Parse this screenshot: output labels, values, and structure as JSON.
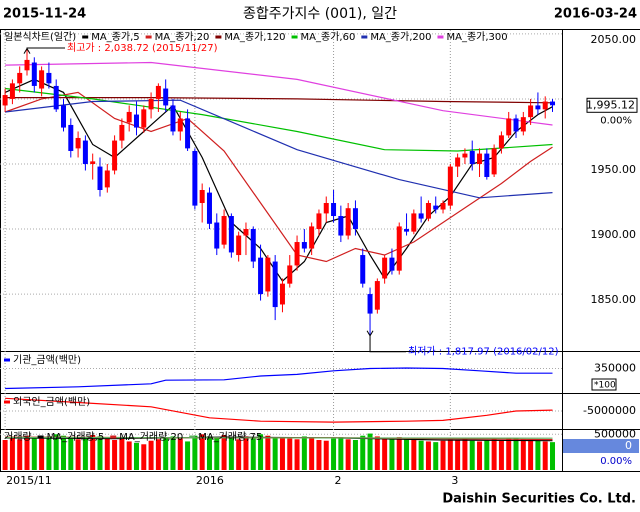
{
  "header": {
    "start_date": "2015-11-24",
    "title": "종합주가지수 (001), 일간",
    "end_date": "2016-03-24"
  },
  "footer": "Daishin Securities Co. Ltd.",
  "chart_data": [
    {
      "type": "candlestick",
      "legend_title": "일본식차트(일간)",
      "up_color": "#ff0000",
      "down_color": "#0000ff",
      "xlim": [
        -0.7,
        76.3
      ],
      "ylim": [
        1807,
        2053
      ],
      "yticks": [
        {
          "value": 1850,
          "label": "1850.00"
        },
        {
          "value": 1900,
          "label": "1900.00"
        },
        {
          "value": 1950,
          "label": "1950.00"
        },
        {
          "value": 2000,
          "label": "2000.00"
        },
        {
          "value": 2050,
          "label": "2050.00"
        }
      ],
      "candles": [
        [
          1995,
          2008,
          1990,
          2003
        ],
        [
          2000,
          2015,
          1996,
          2012
        ],
        [
          2012,
          2025,
          2005,
          2020
        ],
        [
          2022,
          2038.72,
          2018,
          2030
        ],
        [
          2028,
          2032,
          2005,
          2010
        ],
        [
          2008,
          2025,
          2002,
          2022
        ],
        [
          2020,
          2028,
          2008,
          2012
        ],
        [
          2010,
          2015,
          1990,
          1992
        ],
        [
          1995,
          2000,
          1975,
          1978
        ],
        [
          1980,
          1985,
          1955,
          1960
        ],
        [
          1962,
          1975,
          1955,
          1970
        ],
        [
          1968,
          1972,
          1945,
          1950
        ],
        [
          1950,
          1958,
          1938,
          1952
        ],
        [
          1948,
          1955,
          1925,
          1930
        ],
        [
          1932,
          1950,
          1928,
          1945
        ],
        [
          1945,
          1972,
          1942,
          1968
        ],
        [
          1968,
          1985,
          1962,
          1980
        ],
        [
          1982,
          1995,
          1975,
          1990
        ],
        [
          1988,
          1998,
          1972,
          1978
        ],
        [
          1978,
          1995,
          1974,
          1992
        ],
        [
          1992,
          2005,
          1985,
          2000
        ],
        [
          2000,
          2012,
          1990,
          2010
        ],
        [
          2008,
          2015,
          1990,
          1995
        ],
        [
          1995,
          2000,
          1972,
          1975
        ],
        [
          1975,
          1990,
          1968,
          1985
        ],
        [
          1985,
          1992,
          1960,
          1962
        ],
        [
          1960,
          1962,
          1915,
          1918
        ],
        [
          1920,
          1935,
          1905,
          1930
        ],
        [
          1928,
          1932,
          1900,
          1904
        ],
        [
          1905,
          1912,
          1880,
          1885
        ],
        [
          1888,
          1915,
          1885,
          1910
        ],
        [
          1910,
          1912,
          1878,
          1882
        ],
        [
          1880,
          1898,
          1875,
          1895
        ],
        [
          1895,
          1905,
          1880,
          1900
        ],
        [
          1900,
          1902,
          1870,
          1875
        ],
        [
          1878,
          1888,
          1845,
          1850
        ],
        [
          1852,
          1880,
          1848,
          1878
        ],
        [
          1875,
          1880,
          1830,
          1840
        ],
        [
          1842,
          1862,
          1836,
          1858
        ],
        [
          1858,
          1880,
          1855,
          1872
        ],
        [
          1872,
          1895,
          1868,
          1890
        ],
        [
          1890,
          1900,
          1882,
          1885
        ],
        [
          1885,
          1905,
          1880,
          1902
        ],
        [
          1900,
          1915,
          1895,
          1912
        ],
        [
          1912,
          1925,
          1905,
          1920
        ],
        [
          1920,
          1930,
          1905,
          1910
        ],
        [
          1910,
          1918,
          1890,
          1895
        ],
        [
          1895,
          1920,
          1892,
          1916
        ],
        [
          1916,
          1922,
          1895,
          1900
        ],
        [
          1880,
          1885,
          1855,
          1858
        ],
        [
          1850,
          1855,
          1817.97,
          1835
        ],
        [
          1838,
          1862,
          1835,
          1860
        ],
        [
          1862,
          1880,
          1858,
          1878
        ],
        [
          1878,
          1885,
          1865,
          1868
        ],
        [
          1868,
          1905,
          1865,
          1902
        ],
        [
          1900,
          1912,
          1895,
          1898
        ],
        [
          1898,
          1915,
          1896,
          1912
        ],
        [
          1912,
          1925,
          1905,
          1908
        ],
        [
          1908,
          1922,
          1906,
          1920
        ],
        [
          1918,
          1925,
          1912,
          1915
        ],
        [
          1915,
          1922,
          1912,
          1920
        ],
        [
          1918,
          1950,
          1915,
          1948
        ],
        [
          1948,
          1958,
          1940,
          1955
        ],
        [
          1955,
          1962,
          1950,
          1958
        ],
        [
          1960,
          1968,
          1945,
          1950
        ],
        [
          1950,
          1962,
          1940,
          1958
        ],
        [
          1958,
          1962,
          1938,
          1940
        ],
        [
          1942,
          1965,
          1940,
          1962
        ],
        [
          1962,
          1975,
          1958,
          1972
        ],
        [
          1972,
          1990,
          1970,
          1985
        ],
        [
          1985,
          1988,
          1970,
          1975
        ],
        [
          1975,
          1990,
          1972,
          1986
        ],
        [
          1986,
          2000,
          1980,
          1995
        ],
        [
          1995,
          2005,
          1988,
          1992
        ],
        [
          1992,
          2002,
          1985,
          1998
        ],
        [
          1998,
          2000,
          1990,
          1995.12
        ]
      ],
      "series": [
        {
          "name": "MA_종가,5",
          "color": "#000000",
          "x": [
            0,
            4,
            8,
            12,
            15,
            19,
            23,
            27,
            31,
            35,
            38,
            41,
            44,
            47,
            50,
            52,
            55,
            58,
            61,
            64,
            67,
            70,
            73,
            75
          ],
          "values": [
            2005,
            2015,
            2005,
            1965,
            1955,
            1975,
            1995,
            1955,
            1905,
            1885,
            1860,
            1875,
            1905,
            1910,
            1880,
            1862,
            1885,
            1910,
            1925,
            1950,
            1955,
            1975,
            1988,
            1994
          ]
        },
        {
          "name": "MA_종가,20",
          "color": "#d02020",
          "x": [
            0,
            5,
            10,
            15,
            20,
            25,
            30,
            35,
            40,
            44,
            48,
            52,
            56,
            60,
            64,
            68,
            72,
            75
          ],
          "values": [
            1990,
            2000,
            2005,
            1985,
            1975,
            1985,
            1960,
            1920,
            1880,
            1875,
            1885,
            1880,
            1890,
            1905,
            1920,
            1935,
            1952,
            1963
          ]
        },
        {
          "name": "MA_종가,120",
          "color": "#800000",
          "x": [
            0,
            20,
            40,
            60,
            75
          ],
          "values": [
            2001,
            2001,
            2000,
            1998,
            1997
          ]
        },
        {
          "name": "MA_종가,60",
          "color": "#00c000",
          "x": [
            0,
            12,
            27,
            40,
            52,
            62,
            75
          ],
          "values": [
            2008,
            2000,
            1988,
            1975,
            1961,
            1960,
            1965
          ]
        },
        {
          "name": "MA_종가,200",
          "color": "#2030b0",
          "x": [
            0,
            12,
            24,
            40,
            54,
            65,
            75
          ],
          "values": [
            1990,
            1998,
            1999,
            1961,
            1938,
            1924,
            1928
          ]
        },
        {
          "name": "MA_종가,300",
          "color": "#e040e0",
          "x": [
            0,
            20,
            40,
            60,
            75
          ],
          "values": [
            2026,
            2028,
            2015,
            1991,
            1980
          ]
        }
      ],
      "annotations": [
        {
          "text": "최고가 : 2,038.72 (2015/11/27)",
          "x": 3,
          "y": 2038.72,
          "color": "#ff0000"
        },
        {
          "text": "최저가 : 1,817.97 (2016/02/12)",
          "x": 50,
          "y": 1817.97,
          "color": "#0000ff"
        }
      ],
      "last_price": {
        "value": 1995.12,
        "label": "1,995.12"
      },
      "change": "0.00%"
    },
    {
      "type": "line",
      "xlim": [
        -0.7,
        76.3
      ],
      "ylim": [
        250000,
        420000
      ],
      "yticks": [
        350000
      ],
      "scale_note": "*100",
      "series": [
        {
          "name": "기관_금액(백만)",
          "color": "#0000ff",
          "x": [
            0,
            10,
            20,
            22,
            30,
            35,
            40,
            45,
            50,
            55,
            60,
            65,
            70,
            75
          ],
          "values": [
            265000,
            272000,
            285000,
            300000,
            302000,
            318000,
            325000,
            340000,
            350000,
            352000,
            350000,
            340000,
            330000,
            330000
          ]
        }
      ]
    },
    {
      "type": "line",
      "xlim": [
        -0.7,
        76.3
      ],
      "ylim": [
        -7000000,
        -3000000
      ],
      "yticks": [
        -5000000
      ],
      "series": [
        {
          "name": "외국인_금액(백만)",
          "color": "#ff0000",
          "x": [
            0,
            10,
            20,
            28,
            35,
            45,
            55,
            60,
            66,
            70,
            75
          ],
          "values": [
            -3500000,
            -4000000,
            -4500000,
            -5800000,
            -6200000,
            -6300000,
            -6200000,
            -6100000,
            -5500000,
            -5000000,
            -4900000
          ]
        }
      ]
    },
    {
      "type": "bar",
      "legend_title": "거래량",
      "up_color": "#ff0000",
      "down_color": "#00c000",
      "xlim": [
        -0.7,
        76.3
      ],
      "ylim": [
        0,
        560000
      ],
      "yticks": [
        500000
      ],
      "xticks": [
        {
          "value": 0,
          "label": "2015/11"
        },
        {
          "value": 26,
          "label": "2016"
        },
        {
          "value": 45,
          "label": "2"
        },
        {
          "value": 61,
          "label": "3"
        }
      ],
      "values": [
        420000,
        450000,
        430000,
        480000,
        460000,
        440000,
        470000,
        500000,
        480000,
        450000,
        430000,
        460000,
        490000,
        470000,
        440000,
        420000,
        450000,
        400000,
        380000,
        360000,
        410000,
        430000,
        450000,
        470000,
        440000,
        400000,
        480000,
        500000,
        470000,
        460000,
        490000,
        450000,
        430000,
        470000,
        440000,
        500000,
        480000,
        460000,
        450000,
        440000,
        430000,
        470000,
        450000,
        420000,
        410000,
        440000,
        460000,
        430000,
        420000,
        480000,
        510000,
        470000,
        450000,
        440000,
        460000,
        430000,
        420000,
        410000,
        400000,
        390000,
        410000,
        430000,
        420000,
        440000,
        410000,
        400000,
        420000,
        430000,
        410000,
        440000,
        450000,
        430000,
        420000,
        410000,
        400000,
        390000
      ],
      "series": [
        {
          "name": "MA_거래량,5",
          "color": "#000000",
          "x": [
            0,
            15,
            30,
            45,
            60,
            75
          ],
          "values": [
            450000,
            440000,
            460000,
            450000,
            420000,
            410000
          ]
        },
        {
          "name": "MA_거래량,20",
          "color": "#d02020",
          "x": [
            0,
            15,
            30,
            45,
            60,
            75
          ],
          "values": [
            460000,
            455000,
            450000,
            452000,
            440000,
            425000
          ]
        },
        {
          "name": "MA_거래량,75",
          "color": "#60b060",
          "x": [
            0,
            75
          ],
          "values": [
            455000,
            445000
          ]
        }
      ],
      "last_label": "0",
      "change": "0.00%"
    }
  ]
}
